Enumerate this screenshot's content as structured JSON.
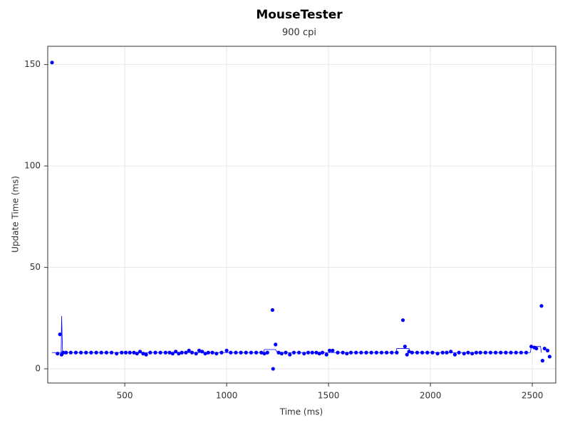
{
  "chart_data": {
    "type": "scatter",
    "title": "MouseTester",
    "subtitle": "900 cpi",
    "x_label": "Time (ms)",
    "y_label": "Update Time (ms)",
    "xlim": [
      122,
      2615
    ],
    "ylim": [
      -7,
      159
    ],
    "xticks": [
      500,
      1000,
      1500,
      2000,
      2500
    ],
    "yticks": [
      0,
      50,
      100,
      150
    ],
    "grid": true,
    "series": [
      {
        "mode": "markers",
        "color": "#0000ff",
        "x": [
          143,
          170,
          182,
          190,
          198,
          212,
          235,
          260,
          285,
          310,
          335,
          360,
          385,
          410,
          435,
          460,
          485,
          505,
          525,
          545,
          560,
          575,
          590,
          605,
          625,
          650,
          675,
          700,
          720,
          735,
          750,
          765,
          780,
          800,
          815,
          830,
          850,
          865,
          880,
          895,
          910,
          930,
          950,
          975,
          1000,
          1020,
          1045,
          1070,
          1095,
          1120,
          1145,
          1170,
          1185,
          1200,
          1225,
          1228,
          1240,
          1255,
          1270,
          1290,
          1310,
          1330,
          1355,
          1380,
          1400,
          1420,
          1440,
          1455,
          1470,
          1490,
          1505,
          1520,
          1545,
          1570,
          1590,
          1610,
          1635,
          1660,
          1685,
          1710,
          1735,
          1760,
          1785,
          1810,
          1835,
          1865,
          1875,
          1885,
          1895,
          1910,
          1935,
          1960,
          1985,
          2010,
          2035,
          2060,
          2080,
          2100,
          2120,
          2140,
          2165,
          2185,
          2205,
          2225,
          2245,
          2270,
          2295,
          2320,
          2345,
          2370,
          2395,
          2420,
          2445,
          2470,
          2495,
          2510,
          2520,
          2545,
          2550,
          2560,
          2575,
          2585
        ],
        "values": [
          151,
          7.5,
          17,
          7,
          8,
          8,
          8,
          8,
          8,
          8,
          8,
          8,
          8,
          8,
          8,
          7.5,
          8,
          8,
          8,
          8,
          7.5,
          8.5,
          7.5,
          7,
          8,
          8,
          8,
          8,
          8,
          7.5,
          8.5,
          7.5,
          8,
          8,
          9,
          8,
          7.5,
          9,
          8.5,
          7.5,
          8,
          8,
          7.5,
          8,
          9,
          8,
          8,
          8,
          8,
          8,
          8,
          8,
          7.5,
          8,
          29,
          0,
          12,
          8,
          7.5,
          8,
          7,
          8,
          8,
          7.5,
          8,
          8,
          8,
          7.5,
          8,
          7,
          9,
          9,
          8,
          8,
          7.5,
          8,
          8,
          8,
          8,
          8,
          8,
          8,
          8,
          8,
          8,
          24,
          11,
          7,
          8.5,
          8,
          8,
          8,
          8,
          8,
          7.5,
          8,
          8,
          8.5,
          7,
          8,
          7.5,
          8,
          7.5,
          8,
          8,
          8,
          8,
          8,
          8,
          8,
          8,
          8,
          8,
          8,
          11,
          10.5,
          10,
          31,
          4,
          10,
          9,
          6
        ]
      },
      {
        "mode": "lines",
        "color": "#0000ff",
        "x": [
          143,
          188,
          190,
          195,
          1180,
          1185,
          1240,
          1250,
          1830,
          1835,
          1895,
          1900,
          2490,
          2495,
          2540,
          2545
        ],
        "values": [
          8,
          8,
          26,
          8,
          8,
          9.5,
          9.5,
          8,
          8,
          10,
          10,
          8,
          8,
          11,
          11,
          8
        ]
      }
    ]
  }
}
